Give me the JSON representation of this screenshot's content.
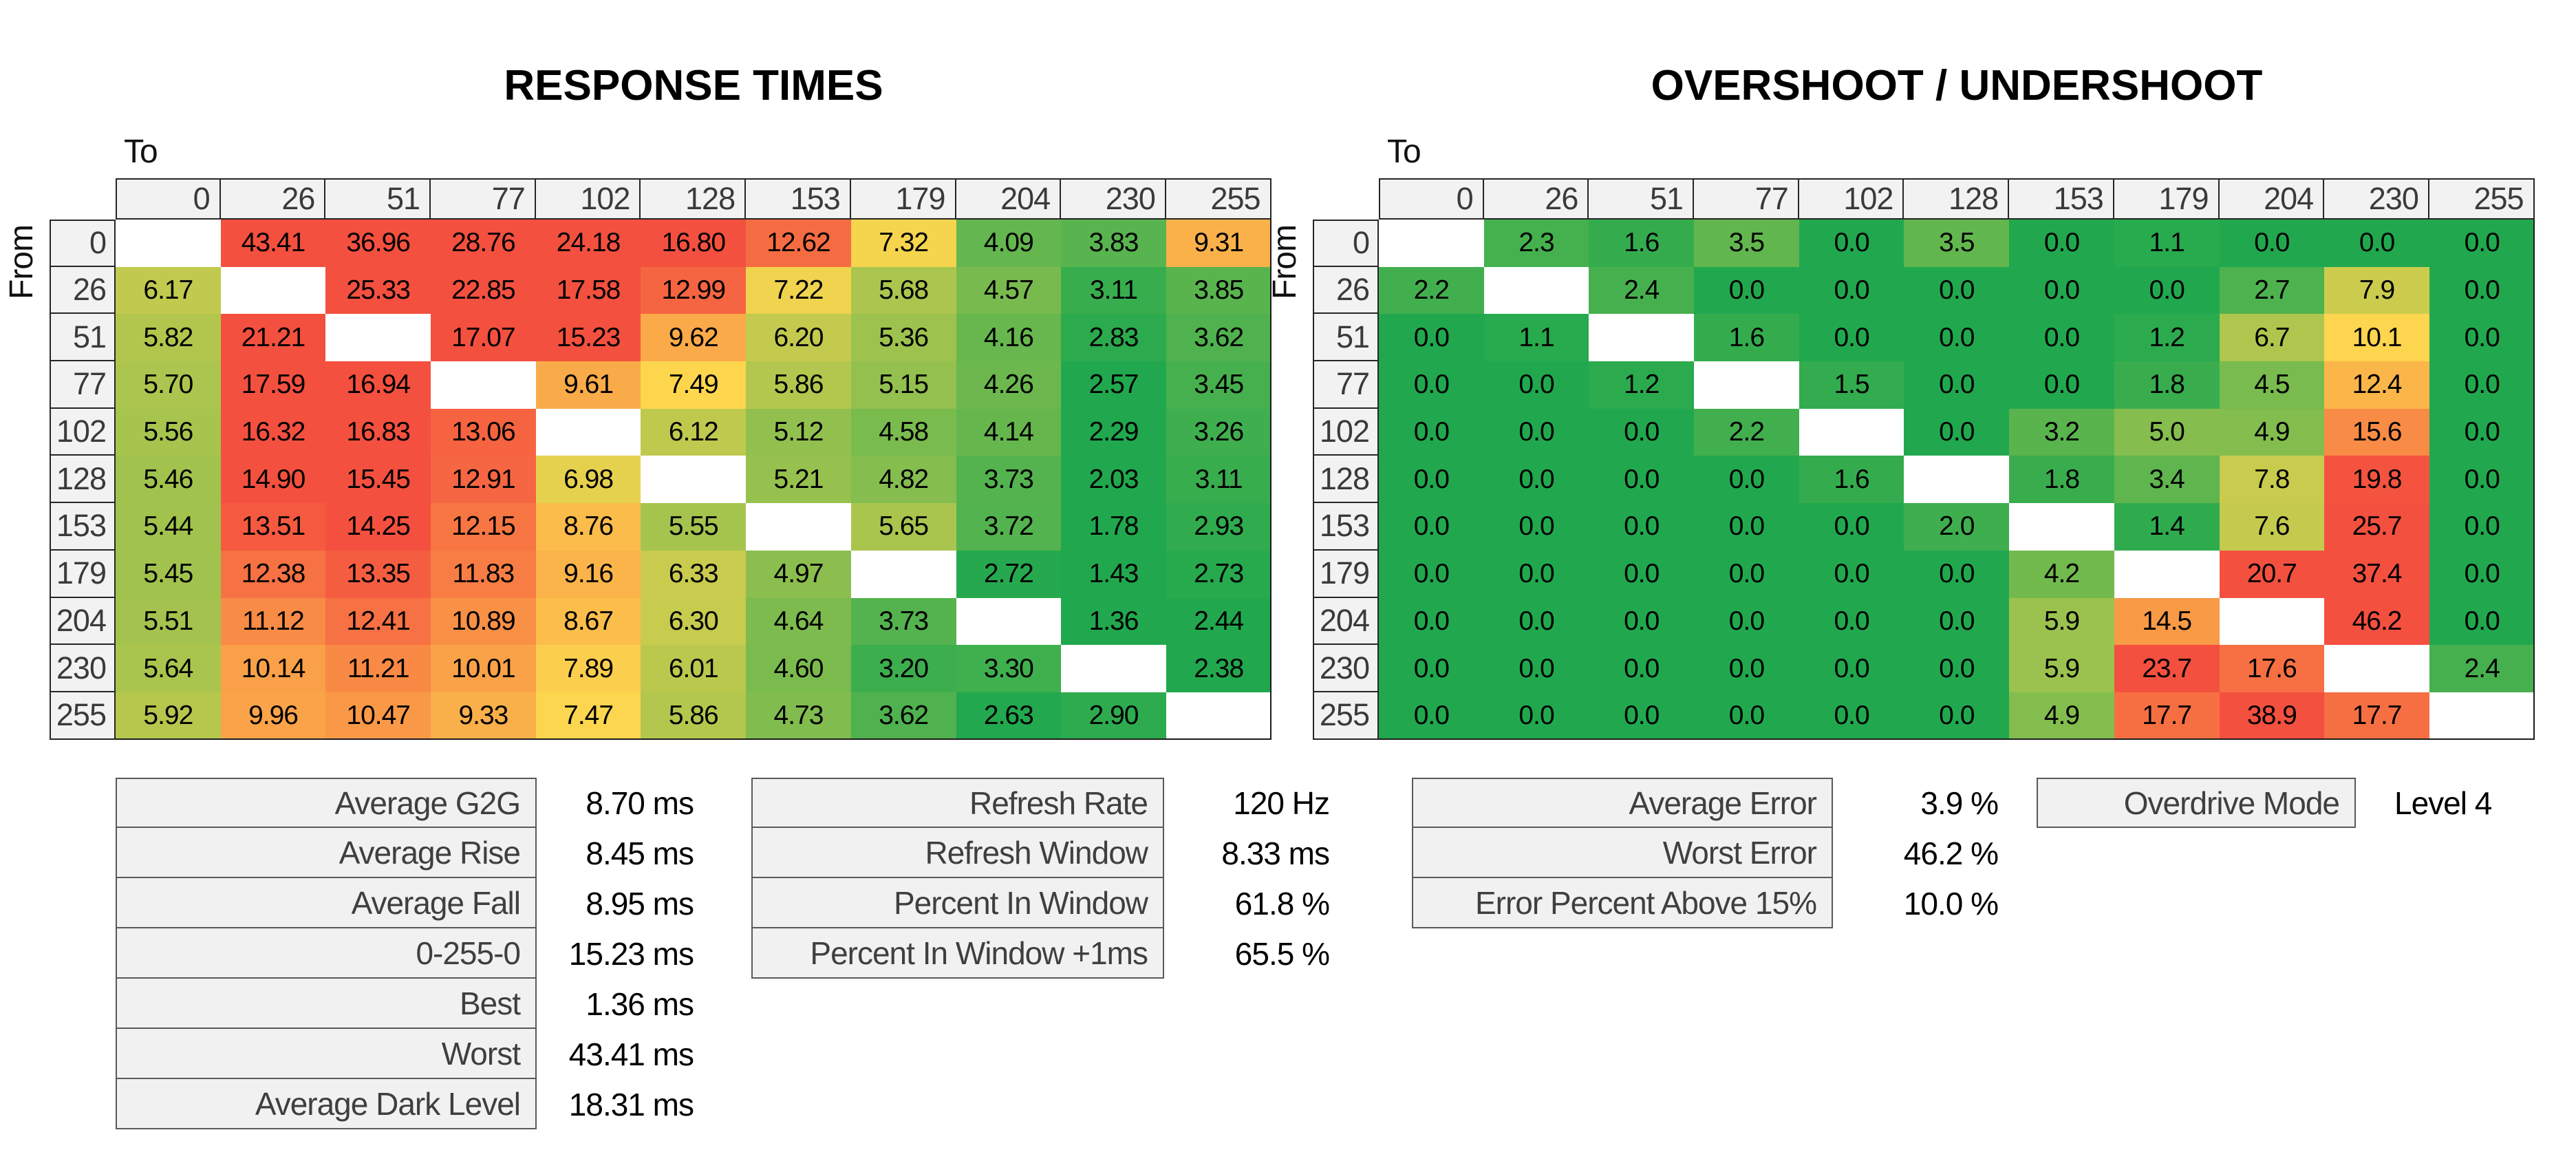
{
  "titles": {
    "left": "RESPONSE TIMES",
    "right": "OVERSHOOT / UNDERSHOOT"
  },
  "axes": {
    "to": "To",
    "from": "From"
  },
  "levels": [
    "0",
    "26",
    "51",
    "77",
    "102",
    "128",
    "153",
    "179",
    "204",
    "230",
    "255"
  ],
  "colors": {
    "background": "#ffffff",
    "scale_green": "#21a84e",
    "scale_yellow": "#fdd64e",
    "scale_red": "#f4503f",
    "diagonal_blank": "#ffffff",
    "header_bg": "#f2f2f2",
    "header_text": "#3a3a3a",
    "grid_border": "#262626",
    "stats_label_bg": "#f1f1f1",
    "stats_border": "#595959",
    "stats_label_text": "#3f3f3f",
    "value_text": "#000000"
  },
  "chart_data": [
    {
      "id": "response-times",
      "type": "heatmap",
      "title": "RESPONSE TIMES",
      "unit": "ms",
      "decimals": 2,
      "row_axis_label": "From",
      "col_axis_label": "To",
      "rows": [
        "0",
        "26",
        "51",
        "77",
        "102",
        "128",
        "153",
        "179",
        "204",
        "230",
        "255"
      ],
      "cols": [
        "0",
        "26",
        "51",
        "77",
        "102",
        "128",
        "153",
        "179",
        "204",
        "230",
        "255"
      ],
      "color_scale": {
        "green_at": 2.6,
        "yellow_at": 7.5,
        "red_at": 14,
        "legend": "green=fast, yellow=mid, red=slow"
      },
      "values": [
        [
          null,
          43.41,
          36.96,
          28.76,
          24.18,
          16.8,
          12.62,
          7.32,
          4.09,
          3.83,
          9.31
        ],
        [
          6.17,
          null,
          25.33,
          22.85,
          17.58,
          12.99,
          7.22,
          5.68,
          4.57,
          3.11,
          3.85
        ],
        [
          5.82,
          21.21,
          null,
          17.07,
          15.23,
          9.62,
          6.2,
          5.36,
          4.16,
          2.83,
          3.62
        ],
        [
          5.7,
          17.59,
          16.94,
          null,
          9.61,
          7.49,
          5.86,
          5.15,
          4.26,
          2.57,
          3.45
        ],
        [
          5.56,
          16.32,
          16.83,
          13.06,
          null,
          6.12,
          5.12,
          4.58,
          4.14,
          2.29,
          3.26
        ],
        [
          5.46,
          14.9,
          15.45,
          12.91,
          6.98,
          null,
          5.21,
          4.82,
          3.73,
          2.03,
          3.11
        ],
        [
          5.44,
          13.51,
          14.25,
          12.15,
          8.76,
          5.55,
          null,
          5.65,
          3.72,
          1.78,
          2.93
        ],
        [
          5.45,
          12.38,
          13.35,
          11.83,
          9.16,
          6.33,
          4.97,
          null,
          2.72,
          1.43,
          2.73
        ],
        [
          5.51,
          11.12,
          12.41,
          10.89,
          8.67,
          6.3,
          4.64,
          3.73,
          null,
          1.36,
          2.44
        ],
        [
          5.64,
          10.14,
          11.21,
          10.01,
          7.89,
          6.01,
          4.6,
          3.2,
          3.3,
          null,
          2.38
        ],
        [
          5.92,
          9.96,
          10.47,
          9.33,
          7.47,
          5.86,
          4.73,
          3.62,
          2.63,
          2.9,
          null
        ]
      ]
    },
    {
      "id": "overshoot-undershoot",
      "type": "heatmap",
      "title": "OVERSHOOT / UNDERSHOOT",
      "unit": "%",
      "decimals": 1,
      "row_axis_label": "From",
      "col_axis_label": "To",
      "rows": [
        "0",
        "26",
        "51",
        "77",
        "102",
        "128",
        "153",
        "179",
        "204",
        "230",
        "255"
      ],
      "cols": [
        "0",
        "26",
        "51",
        "77",
        "102",
        "128",
        "153",
        "179",
        "204",
        "230",
        "255"
      ],
      "color_scale": {
        "green_at": 0.8,
        "yellow_at": 10,
        "red_at": 20,
        "legend": "green=low error, red=high error"
      },
      "values": [
        [
          null,
          2.3,
          1.6,
          3.5,
          0.0,
          3.5,
          0.0,
          1.1,
          0.0,
          0.0,
          0.0
        ],
        [
          2.2,
          null,
          2.4,
          0.0,
          0.0,
          0.0,
          0.0,
          0.0,
          2.7,
          7.9,
          0.0
        ],
        [
          0.0,
          1.1,
          null,
          1.6,
          0.0,
          0.0,
          0.0,
          1.2,
          6.7,
          10.1,
          0.0
        ],
        [
          0.0,
          0.0,
          1.2,
          null,
          1.5,
          0.0,
          0.0,
          1.8,
          4.5,
          12.4,
          0.0
        ],
        [
          0.0,
          0.0,
          0.0,
          2.2,
          null,
          0.0,
          3.2,
          5.0,
          4.9,
          15.6,
          0.0
        ],
        [
          0.0,
          0.0,
          0.0,
          0.0,
          1.6,
          null,
          1.8,
          3.4,
          7.8,
          19.8,
          0.0
        ],
        [
          0.0,
          0.0,
          0.0,
          0.0,
          0.0,
          2.0,
          null,
          1.4,
          7.6,
          25.7,
          0.0
        ],
        [
          0.0,
          0.0,
          0.0,
          0.0,
          0.0,
          0.0,
          4.2,
          null,
          20.7,
          37.4,
          0.0
        ],
        [
          0.0,
          0.0,
          0.0,
          0.0,
          0.0,
          0.0,
          5.9,
          14.5,
          null,
          46.2,
          0.0
        ],
        [
          0.0,
          0.0,
          0.0,
          0.0,
          0.0,
          0.0,
          5.9,
          23.7,
          17.6,
          null,
          2.4
        ],
        [
          0.0,
          0.0,
          0.0,
          0.0,
          0.0,
          0.0,
          4.9,
          17.7,
          38.9,
          17.7,
          null
        ]
      ]
    }
  ],
  "stats_tables": [
    {
      "id": "response-summary",
      "rows": [
        {
          "label": "Average G2G",
          "value": "8.70 ms"
        },
        {
          "label": "Average Rise",
          "value": "8.45 ms"
        },
        {
          "label": "Average Fall",
          "value": "8.95 ms"
        },
        {
          "label": "0-255-0",
          "value": "15.23 ms"
        },
        {
          "label": "Best",
          "value": "1.36 ms"
        },
        {
          "label": "Worst",
          "value": "43.41 ms"
        },
        {
          "label": "Average Dark Level",
          "value": "18.31 ms"
        }
      ]
    },
    {
      "id": "refresh-summary",
      "rows": [
        {
          "label": "Refresh Rate",
          "value": "120 Hz"
        },
        {
          "label": "Refresh Window",
          "value": "8.33 ms"
        },
        {
          "label": "Percent In Window",
          "value": "61.8 %"
        },
        {
          "label": "Percent In Window +1ms",
          "value": "65.5 %"
        }
      ]
    },
    {
      "id": "error-summary",
      "rows": [
        {
          "label": "Average Error",
          "value": "3.9 %"
        },
        {
          "label": "Worst Error",
          "value": "46.2 %"
        },
        {
          "label": "Error Percent Above 15%",
          "value": "10.0 %"
        }
      ]
    },
    {
      "id": "overdrive",
      "rows": [
        {
          "label": "Overdrive Mode",
          "value": "Level 4"
        }
      ]
    }
  ]
}
